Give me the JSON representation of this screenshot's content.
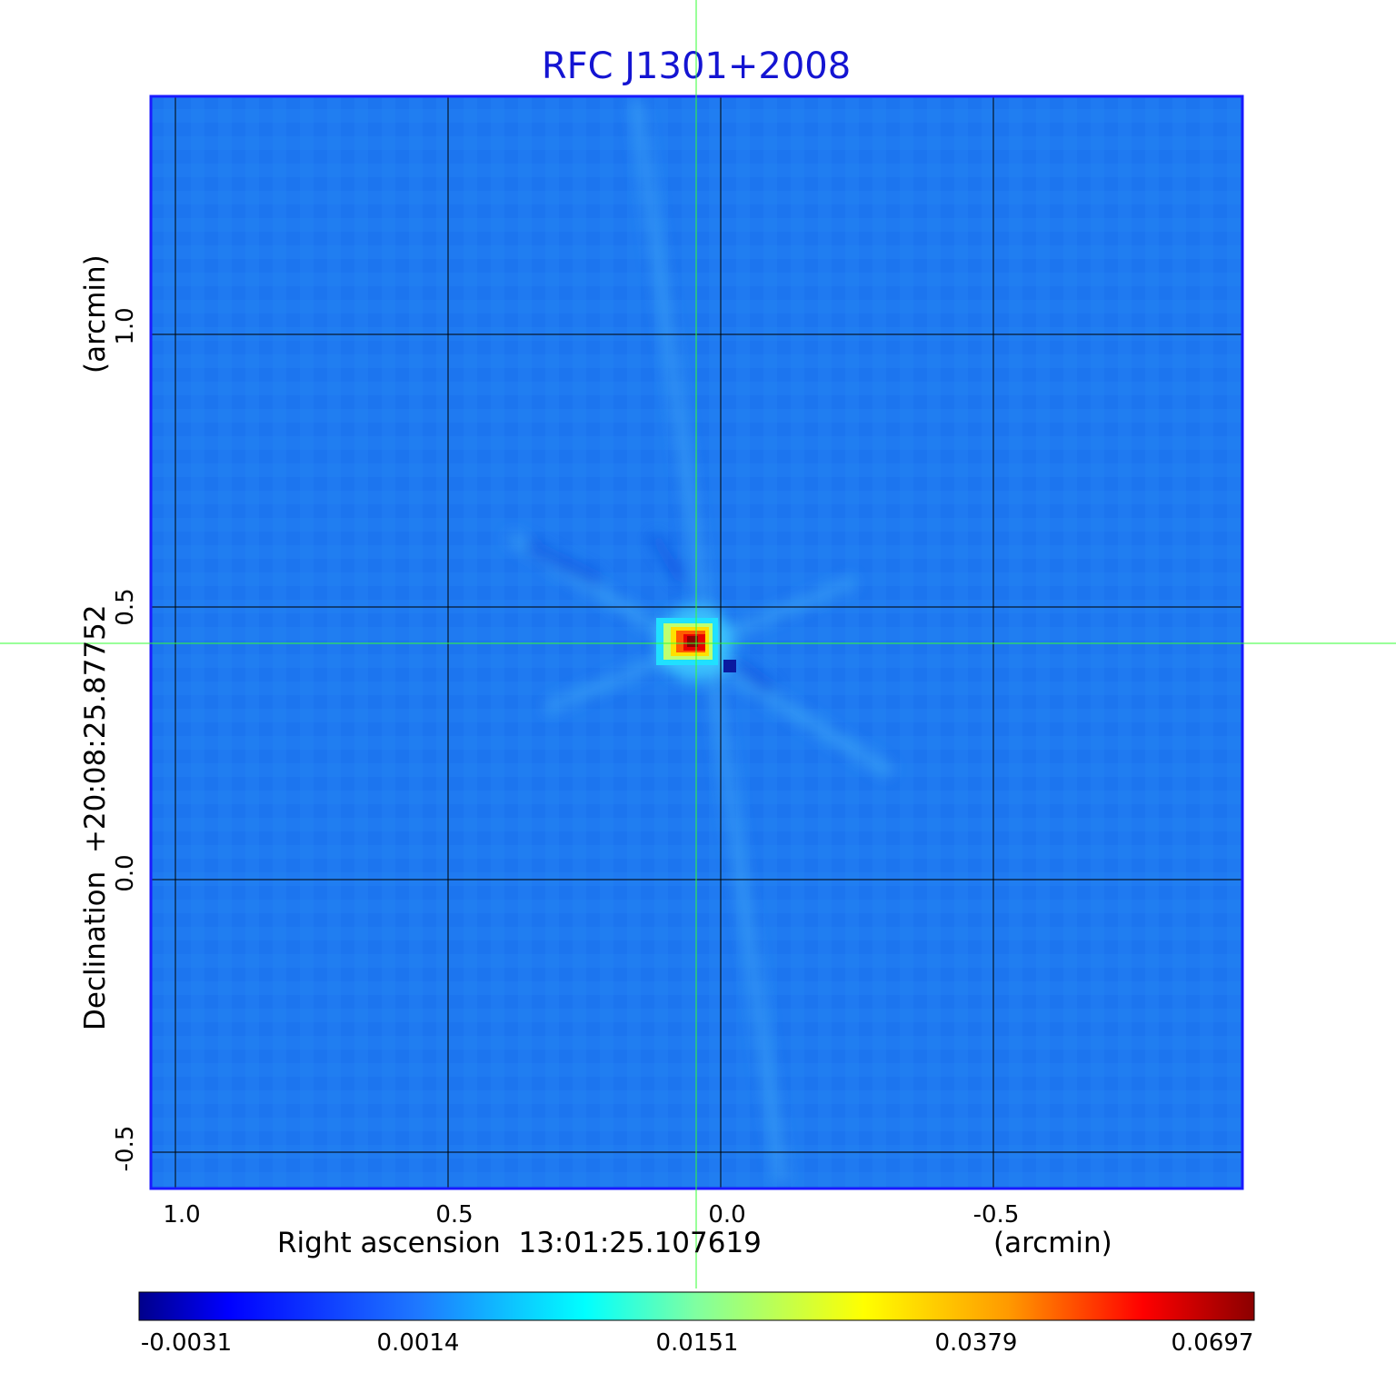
{
  "title": "RFC J1301+2008",
  "x_axis": {
    "label": "Right ascension  13:01:25.107619",
    "unit": "(arcmin)",
    "ticks": [
      "1.0",
      "0.5",
      "0.0",
      "-0.5"
    ]
  },
  "y_axis": {
    "label": "Declination  +20:08:25.87752",
    "unit": "(arcmin)",
    "ticks": [
      "1.0",
      "0.5",
      "0.0",
      "-0.5"
    ]
  },
  "colorbar": {
    "ticks": [
      "-0.0031",
      "0.0014",
      "0.0151",
      "0.0379",
      "0.0697"
    ],
    "colormap": [
      "#00008b",
      "#0000ff",
      "#1e78ff",
      "#00ffff",
      "#ffff00",
      "#ff8c00",
      "#ff0000",
      "#8b0000"
    ]
  },
  "colors": {
    "title": "#1414d2",
    "frame": "#1a1aff",
    "background_map": "#1e78f0",
    "grid": "#000000",
    "crosshair": "#33ff33"
  }
}
